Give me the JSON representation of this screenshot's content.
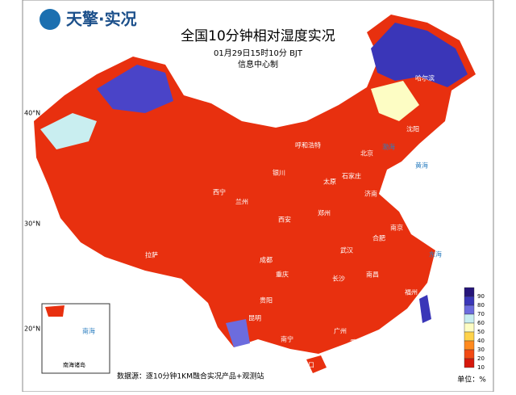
{
  "header": {
    "logo": "天擎·实况",
    "title": "全国10分钟相对湿度实况",
    "time": "01月29日15时10分 BJT",
    "issuer": "信息中心制"
  },
  "latitudes": [
    "40°N",
    "30°N",
    "20°N"
  ],
  "cities": [
    "哈尔滨",
    "沈阳",
    "呼和浩特",
    "北京",
    "银川",
    "太原",
    "石家庄",
    "济南",
    "西宁",
    "兰州",
    "西安",
    "郑州",
    "拉萨",
    "成都",
    "武汉",
    "合肥",
    "南京",
    "重庆",
    "长沙",
    "南昌",
    "贵阳",
    "福州",
    "昆明",
    "南宁",
    "广州",
    "香港",
    "海口"
  ],
  "seas": [
    "渤海",
    "黄海",
    "东海",
    "南海"
  ],
  "legend": {
    "unit": "单位：%",
    "levels": [
      {
        "label": 90,
        "color": "#26157a"
      },
      {
        "label": 80,
        "color": "#3a36b8"
      },
      {
        "label": 70,
        "color": "#6c6cde"
      },
      {
        "label": 60,
        "color": "#c9eef0"
      },
      {
        "label": 50,
        "color": "#fdfdc4"
      },
      {
        "label": 40,
        "color": "#ffd24a"
      },
      {
        "label": 30,
        "color": "#ff8a1e"
      },
      {
        "label": 20,
        "color": "#f24a14"
      },
      {
        "label": 10,
        "color": "#d6180c"
      }
    ]
  },
  "inset": {
    "label": "南海诸岛"
  },
  "source": "数据源：逐10分钟1KM融合实况产品+观测站"
}
